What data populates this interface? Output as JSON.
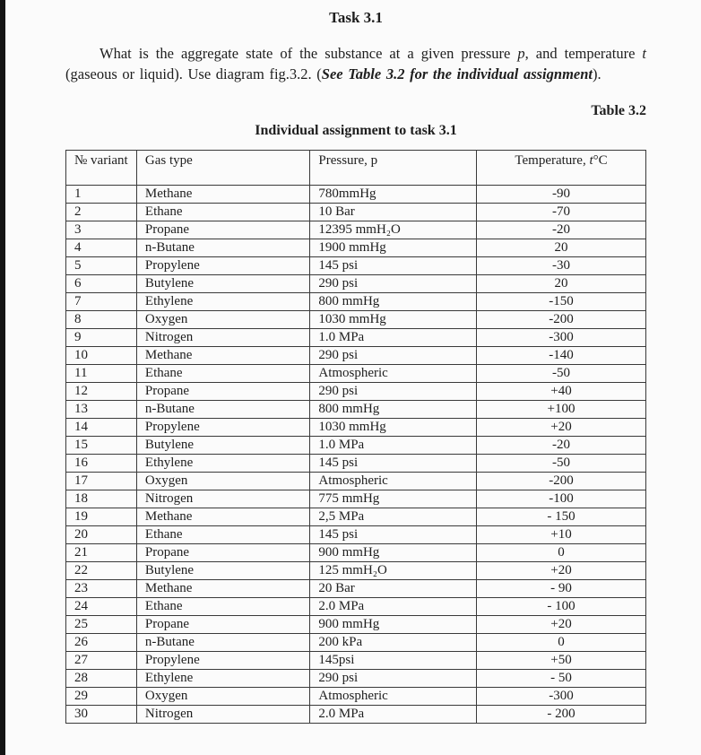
{
  "colors": {
    "page_bg": "#fbfbfb",
    "text": "#1e1e1e",
    "table_border": "#3a3a3a",
    "scan_bar": "#141414"
  },
  "document": {
    "title": "Task 3.1",
    "paragraph": {
      "seg1": "What is the aggregate state of the substance at a given pressure ",
      "seg2_italic": "p",
      "seg3": ", and temperature ",
      "seg4_italic": "t",
      "seg5": " (gaseous or liquid). Use diagram fig.3.2. (",
      "seg6_bold_italic": "See Table 3.2 for the individual assignment",
      "seg7": ")."
    },
    "table_label": "Table 3.2",
    "table_caption": "Individual assignment to task 3.1",
    "table": {
      "headers": {
        "variant": "№ variant",
        "gas": "Gas type",
        "pressure": "Pressure, p",
        "temp_prefix": "Temperature, ",
        "temp_symbol": "t",
        "temp_suffix": "°C"
      },
      "rows": [
        {
          "variant": "1",
          "gas": "Methane",
          "pressure": "780mmHg",
          "temperature": "-90"
        },
        {
          "variant": "2",
          "gas": "Ethane",
          "pressure": "10 Bar",
          "temperature": "-70"
        },
        {
          "variant": "3",
          "gas": "Propane",
          "pressure": "12395 mmH₂O",
          "temperature": "-20"
        },
        {
          "variant": "4",
          "gas": "n-Butane",
          "pressure": "1900 mmHg",
          "temperature": "20"
        },
        {
          "variant": "5",
          "gas": "Propylene",
          "pressure": "145 psi",
          "temperature": "-30"
        },
        {
          "variant": "6",
          "gas": "Butylene",
          "pressure": "290 psi",
          "temperature": "20"
        },
        {
          "variant": "7",
          "gas": "Ethylene",
          "pressure": "800 mmHg",
          "temperature": "-150"
        },
        {
          "variant": "8",
          "gas": "Oxygen",
          "pressure": "1030 mmHg",
          "temperature": "-200"
        },
        {
          "variant": "9",
          "gas": "Nitrogen",
          "pressure": "1.0 MPa",
          "temperature": "-300"
        },
        {
          "variant": "10",
          "gas": "Methane",
          "pressure": "290 psi",
          "temperature": "-140"
        },
        {
          "variant": "11",
          "gas": "Ethane",
          "pressure": "Atmospheric",
          "temperature": "-50"
        },
        {
          "variant": "12",
          "gas": "Propane",
          "pressure": "290 psi",
          "temperature": "+40"
        },
        {
          "variant": "13",
          "gas": "n-Butane",
          "pressure": "800 mmHg",
          "temperature": "+100"
        },
        {
          "variant": "14",
          "gas": "Propylene",
          "pressure": "1030 mmHg",
          "temperature": "+20"
        },
        {
          "variant": "15",
          "gas": "Butylene",
          "pressure": "1.0 MPa",
          "temperature": "-20"
        },
        {
          "variant": "16",
          "gas": "Ethylene",
          "pressure": "145 psi",
          "temperature": "-50"
        },
        {
          "variant": "17",
          "gas": "Oxygen",
          "pressure": "Atmospheric",
          "temperature": "-200"
        },
        {
          "variant": "18",
          "gas": "Nitrogen",
          "pressure": "775 mmHg",
          "temperature": "-100"
        },
        {
          "variant": "19",
          "gas": "Methane",
          "pressure": "2,5 MPa",
          "temperature": "- 150"
        },
        {
          "variant": "20",
          "gas": "Ethane",
          "pressure": "145 psi",
          "temperature": "+10"
        },
        {
          "variant": "21",
          "gas": "Propane",
          "pressure": "900 mmHg",
          "temperature": "0"
        },
        {
          "variant": "22",
          "gas": "Butylene",
          "pressure": "125 mmH₂O",
          "temperature": "+20"
        },
        {
          "variant": "23",
          "gas": "Methane",
          "pressure": "20 Bar",
          "temperature": "- 90"
        },
        {
          "variant": "24",
          "gas": "Ethane",
          "pressure": "2.0 MPa",
          "temperature": "- 100"
        },
        {
          "variant": "25",
          "gas": "Propane",
          "pressure": "900 mmHg",
          "temperature": "+20"
        },
        {
          "variant": "26",
          "gas": "n-Butane",
          "pressure": "200 kPa",
          "temperature": "0"
        },
        {
          "variant": "27",
          "gas": "Propylene",
          "pressure": "145psi",
          "temperature": "+50"
        },
        {
          "variant": "28",
          "gas": "Ethylene",
          "pressure": "290 psi",
          "temperature": "- 50"
        },
        {
          "variant": "29",
          "gas": "Oxygen",
          "pressure": "Atmospheric",
          "temperature": "-300"
        },
        {
          "variant": "30",
          "gas": "Nitrogen",
          "pressure": "2.0 MPa",
          "temperature": "- 200"
        }
      ]
    }
  }
}
